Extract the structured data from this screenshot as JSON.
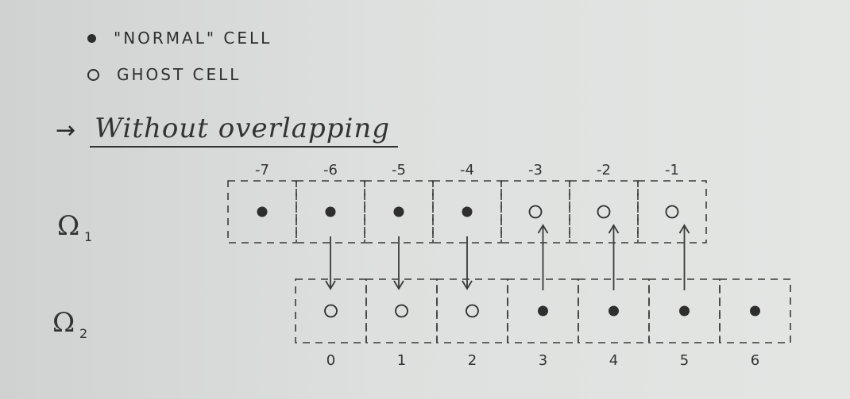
{
  "legend": {
    "normal_label": "\"NORMAL\" CELL",
    "ghost_label": "GHOST CELL"
  },
  "heading": {
    "arrow": "→",
    "text": "Without overlapping"
  },
  "domains": [
    {
      "name": "Ω",
      "subscript": "1",
      "cells": [
        {
          "index": "-7",
          "type": "normal"
        },
        {
          "index": "-6",
          "type": "normal"
        },
        {
          "index": "-5",
          "type": "normal"
        },
        {
          "index": "-4",
          "type": "normal"
        },
        {
          "index": "-3",
          "type": "ghost"
        },
        {
          "index": "-2",
          "type": "ghost"
        },
        {
          "index": "-1",
          "type": "ghost"
        }
      ]
    },
    {
      "name": "Ω",
      "subscript": "2",
      "cells": [
        {
          "index": "0",
          "type": "ghost"
        },
        {
          "index": "1",
          "type": "ghost"
        },
        {
          "index": "2",
          "type": "ghost"
        },
        {
          "index": "3",
          "type": "normal"
        },
        {
          "index": "4",
          "type": "normal"
        },
        {
          "index": "5",
          "type": "normal"
        },
        {
          "index": "6",
          "type": "normal"
        }
      ]
    }
  ],
  "transfers": [
    {
      "from": "-6",
      "to": "0",
      "direction": "down"
    },
    {
      "from": "-5",
      "to": "1",
      "direction": "down"
    },
    {
      "from": "-4",
      "to": "2",
      "direction": "down"
    },
    {
      "from": "3",
      "to": "-3",
      "direction": "up"
    },
    {
      "from": "4",
      "to": "-2",
      "direction": "up"
    },
    {
      "from": "5",
      "to": "-1",
      "direction": "up"
    }
  ]
}
